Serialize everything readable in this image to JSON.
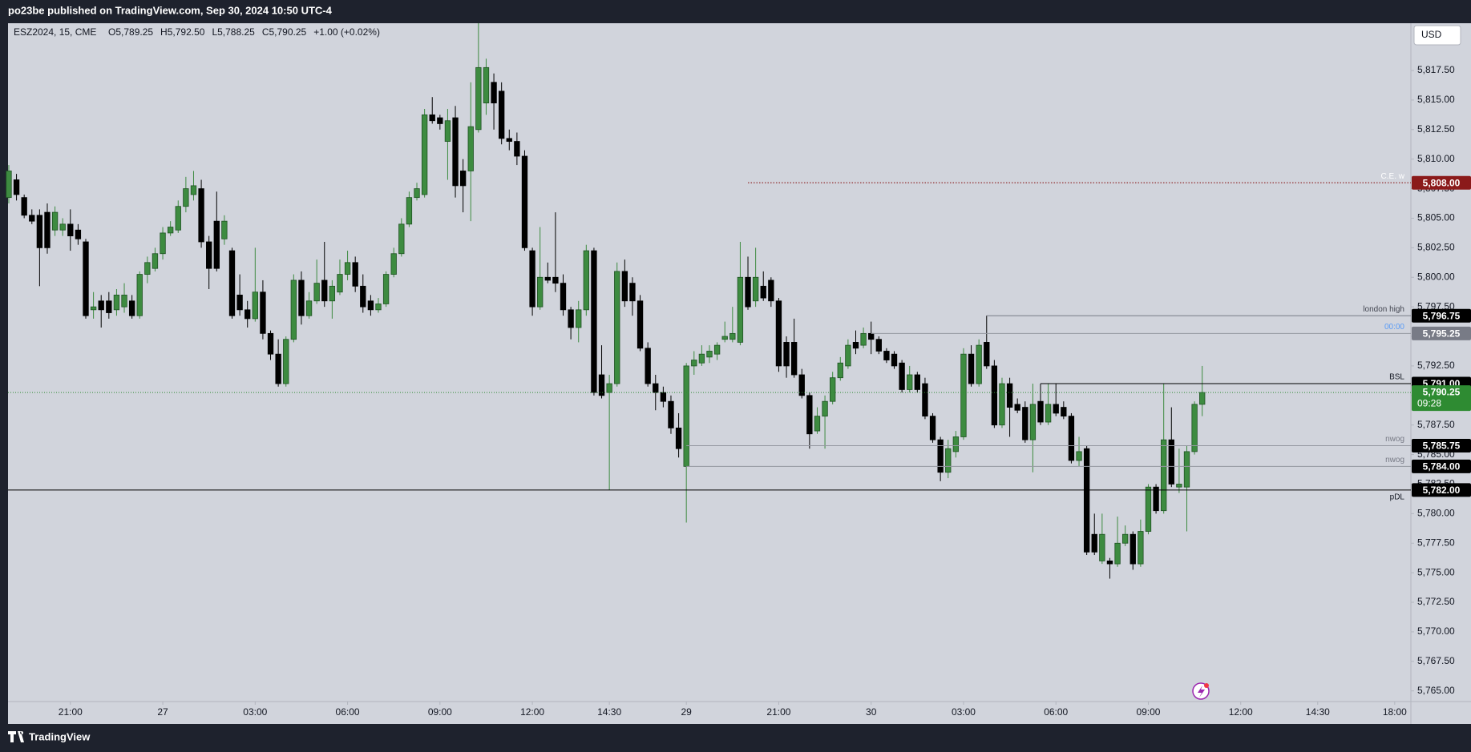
{
  "header": {
    "title": "po23be published on TradingView.com, Sep 30, 2024 10:50 UTC-4"
  },
  "chart_data": {
    "type": "candlestick",
    "symbol": "ESZ2024, 15, CME",
    "ohlc_legend": [
      "O5,789.25",
      "H5,792.50",
      "L5,788.25",
      "C5,790.25",
      "+1.00 (+0.02%)"
    ],
    "currency": "USD",
    "up_color": "#3d8b40",
    "up_border": "#1f5223",
    "down_color": "#000000",
    "open": [
      5806.75,
      5808.25,
      5806.75,
      5805.25,
      5805.25,
      5805.5,
      5804,
      5804,
      5804.5,
      5804,
      5803,
      5797.25,
      5798,
      5798,
      5797.25,
      5797.5,
      5798,
      5796.75,
      5800.25,
      5800.75,
      5802,
      5803.75,
      5804,
      5806,
      5807,
      5807.5,
      5803,
      5804.75,
      5803.25,
      5802.25,
      5798.5,
      5797.25,
      5796.5,
      5798.75,
      5795.25,
      5793.5,
      5791,
      5794.75,
      5799.75,
      5796.75,
      5798,
      5799.75,
      5798,
      5798.75,
      5800.25,
      5801.25,
      5799.25,
      5798,
      5797.25,
      5797.75,
      5800.25,
      5802,
      5804.5,
      5806.75,
      5807,
      5813.75,
      5813.5,
      5811.5,
      5813.5,
      5809,
      5809,
      5812.5,
      5814.75,
      5816.5,
      5815.75,
      5811.75,
      5811.5,
      5810.25,
      5802.25,
      5797.5,
      5800,
      5800,
      5799.5,
      5797.25,
      5795.75,
      5797.25,
      5802.25,
      5791.75,
      5790.25,
      5791,
      5800.5,
      5799.5,
      5798,
      5794,
      5791,
      5790.25,
      5789.5,
      5787.25,
      5784,
      5792.5,
      5792.75,
      5793.25,
      5793.5,
      5794.75,
      5794.75,
      5794.5,
      5800,
      5798,
      5799.25,
      5799.75,
      5798,
      5794.5,
      5794.5,
      5791.75,
      5790,
      5787,
      5788.25,
      5789.5,
      5791.5,
      5792.5,
      5794.5,
      5794.25,
      5795.25,
      5794.75,
      5793.75,
      5793.5,
      5792.75,
      5790.5,
      5791.75,
      5791,
      5788.25,
      5786.25,
      5783.5,
      5785.25,
      5786.5,
      5793.5,
      5791,
      5794.5,
      5792.5,
      5787.5,
      5791,
      5789.25,
      5789,
      5786.25,
      5789.5,
      5787.75,
      5789.25,
      5789,
      5788.25,
      5784.5,
      5785.5,
      5778.25,
      5776,
      5776,
      5775.75,
      5777.5,
      5778.25,
      5775.75,
      5778.5,
      5782.25,
      5780.25,
      5786.25,
      5782.25,
      5782.25,
      5785.25,
      5789.25
    ],
    "high": [
      5809.5,
      5808.75,
      5807,
      5805.75,
      5805.75,
      5806.25,
      5806,
      5805,
      5805.75,
      5804.5,
      5803.25,
      5798.75,
      5798.5,
      5798.75,
      5799,
      5799.5,
      5798.5,
      5800.5,
      5801.75,
      5802.5,
      5804.25,
      5804.75,
      5806.5,
      5808.5,
      5809,
      5808.25,
      5803.5,
      5807.25,
      5805.25,
      5802.5,
      5800.25,
      5798,
      5802.5,
      5799.75,
      5795.5,
      5794.75,
      5795,
      5800.25,
      5800.5,
      5798.75,
      5801.5,
      5803,
      5799.75,
      5801.5,
      5802.25,
      5801.75,
      5800.25,
      5798.5,
      5798.25,
      5800.5,
      5802.5,
      5805,
      5807.25,
      5808,
      5814.25,
      5815.25,
      5813.75,
      5814.25,
      5814.5,
      5810,
      5816.5,
      5821.5,
      5818.5,
      5817.25,
      5816.5,
      5812.5,
      5812.25,
      5810.75,
      5802.5,
      5804.25,
      5801.25,
      5805.5,
      5800.25,
      5797.5,
      5798,
      5802.75,
      5802.5,
      5794.25,
      5791.75,
      5801.25,
      5801.5,
      5800,
      5798.5,
      5794.5,
      5791.75,
      5790.75,
      5790,
      5788.5,
      5792.75,
      5793.75,
      5794.25,
      5794.25,
      5794.5,
      5796.25,
      5797.5,
      5803,
      5801.75,
      5802.5,
      5800.5,
      5800,
      5798.25,
      5795,
      5796.5,
      5792.25,
      5790.25,
      5789,
      5790,
      5792,
      5793.25,
      5794.75,
      5795.5,
      5795.75,
      5796.25,
      5795,
      5794,
      5793.75,
      5793,
      5792.5,
      5792,
      5791.5,
      5788.5,
      5786.5,
      5786.25,
      5787,
      5794,
      5794.25,
      5794.75,
      5796.75,
      5793,
      5791.5,
      5791.5,
      5789.75,
      5789.5,
      5791,
      5791,
      5791,
      5791,
      5789.5,
      5788.5,
      5786.5,
      5785.75,
      5780,
      5780,
      5776.25,
      5779.75,
      5779,
      5778.5,
      5779.5,
      5782.5,
      5782.5,
      5791,
      5789,
      5785.5,
      5785.75,
      5789.5,
      5792.5
    ],
    "low": [
      5806.25,
      5806.5,
      5805,
      5804.5,
      5799.25,
      5802,
      5803.5,
      5803.5,
      5802.25,
      5802.75,
      5796.5,
      5796.5,
      5795.75,
      5796.5,
      5796.75,
      5797,
      5796.5,
      5796.5,
      5799.5,
      5800.5,
      5801.5,
      5803.5,
      5803.75,
      5805.5,
      5806.5,
      5802.5,
      5799,
      5800.5,
      5802.75,
      5796.5,
      5796.75,
      5795.75,
      5796.25,
      5794.75,
      5793,
      5790.75,
      5790.75,
      5794.5,
      5796,
      5796.5,
      5797.75,
      5797.5,
      5796.5,
      5798.5,
      5799.75,
      5798.75,
      5797,
      5796.75,
      5797,
      5797.5,
      5800,
      5801.75,
      5804.25,
      5806.5,
      5806.75,
      5813,
      5812.5,
      5808.25,
      5806.75,
      5805.5,
      5804.75,
      5812.25,
      5813.75,
      5812.5,
      5811.25,
      5810.75,
      5809.5,
      5802.25,
      5796.75,
      5797.25,
      5799.5,
      5798.75,
      5796.75,
      5794.75,
      5794.5,
      5796.75,
      5790,
      5789.75,
      5782,
      5790.75,
      5797.5,
      5796.75,
      5793.75,
      5790.75,
      5788.75,
      5789,
      5786.75,
      5784.75,
      5779.25,
      5791.75,
      5792.5,
      5792.75,
      5793,
      5794.5,
      5794.5,
      5794.25,
      5797.25,
      5797.5,
      5798,
      5797.5,
      5792,
      5791.5,
      5791.5,
      5789.75,
      5785.5,
      5786.75,
      5785.5,
      5789.25,
      5791.25,
      5792.25,
      5793.5,
      5794,
      5793.5,
      5793.5,
      5792.75,
      5792.25,
      5790.25,
      5790.25,
      5790.25,
      5788,
      5786,
      5782.75,
      5783,
      5784.75,
      5786.25,
      5790.75,
      5790.75,
      5792.25,
      5787.25,
      5787.25,
      5786.5,
      5788.5,
      5786,
      5783.5,
      5787.5,
      5787.5,
      5788.25,
      5788,
      5784.25,
      5784,
      5776.5,
      5776.5,
      5775.75,
      5774.5,
      5775.5,
      5777.25,
      5775.25,
      5775.5,
      5778.25,
      5780,
      5780,
      5782.25,
      5781.75,
      5778.5,
      5785,
      5788.25
    ],
    "close": [
      5809,
      5807,
      5805.25,
      5804.75,
      5802.5,
      5802.5,
      5805.5,
      5804.5,
      5803.5,
      5803.25,
      5796.75,
      5797.5,
      5797.25,
      5797,
      5798.5,
      5798.5,
      5796.75,
      5800.25,
      5801.25,
      5802,
      5803.75,
      5804.25,
      5806,
      5807.5,
      5807.75,
      5803,
      5800.75,
      5800.75,
      5804.75,
      5796.75,
      5797.25,
      5796.5,
      5798.75,
      5795.25,
      5793.5,
      5791,
      5794.75,
      5799.75,
      5796.75,
      5798,
      5799.5,
      5798,
      5799.25,
      5800.25,
      5801.25,
      5799.25,
      5797.5,
      5797.25,
      5797.75,
      5800.25,
      5802,
      5804.5,
      5806.75,
      5807.5,
      5813.75,
      5813.25,
      5813,
      5813.25,
      5807.75,
      5807.75,
      5812.75,
      5817.75,
      5817.75,
      5814.75,
      5811.75,
      5811.5,
      5810.25,
      5802.5,
      5797.5,
      5800,
      5799.75,
      5799.5,
      5797.25,
      5795.75,
      5797.25,
      5802.25,
      5790.25,
      5790,
      5791,
      5800.5,
      5798,
      5798,
      5794,
      5791,
      5790.25,
      5789.5,
      5787.25,
      5785.5,
      5792.5,
      5793,
      5793.5,
      5793.75,
      5794.25,
      5795,
      5795.25,
      5800,
      5797.5,
      5800,
      5798.25,
      5798,
      5792.5,
      5792.5,
      5791.75,
      5790,
      5786.75,
      5788.25,
      5789.5,
      5791.5,
      5792.75,
      5794.25,
      5794,
      5795.25,
      5794.75,
      5793.75,
      5793,
      5792.5,
      5790.5,
      5791.75,
      5790.5,
      5788.25,
      5786.25,
      5783.5,
      5785.5,
      5786.5,
      5793.5,
      5791,
      5794.25,
      5792.5,
      5787.5,
      5791,
      5789,
      5788.75,
      5786.25,
      5789.25,
      5787.75,
      5789.25,
      5788.5,
      5788.25,
      5784.5,
      5785.25,
      5776.75,
      5776.75,
      5778.25,
      5775.75,
      5777.5,
      5778.25,
      5775.75,
      5778.5,
      5782.25,
      5780.25,
      5786.25,
      5782.5,
      5782.5,
      5785.25,
      5789.25,
      5790.25
    ],
    "xlim": [
      -0.1,
      182.1
    ],
    "xticks": [
      {
        "value": 8,
        "label": "21:00"
      },
      {
        "value": 20,
        "label": "27"
      },
      {
        "value": 32,
        "label": "03:00"
      },
      {
        "value": 44,
        "label": "06:00"
      },
      {
        "value": 56,
        "label": "09:00"
      },
      {
        "value": 68,
        "label": "12:00"
      },
      {
        "value": 78,
        "label": "14:30"
      },
      {
        "value": 88,
        "label": "29"
      },
      {
        "value": 100,
        "label": "21:00"
      },
      {
        "value": 112,
        "label": "30"
      },
      {
        "value": 124,
        "label": "03:00"
      },
      {
        "value": 136,
        "label": "06:00"
      },
      {
        "value": 148,
        "label": "09:00"
      },
      {
        "value": 160,
        "label": "12:00"
      },
      {
        "value": 170,
        "label": "14:30"
      },
      {
        "value": 180,
        "label": "18:00"
      }
    ],
    "ylim": [
      5764.1,
      5821.5
    ],
    "yticks": [
      {
        "value": 5765,
        "label": "5,765.00"
      },
      {
        "value": 5767.5,
        "label": "5,767.50"
      },
      {
        "value": 5770,
        "label": "5,770.00"
      },
      {
        "value": 5772.5,
        "label": "5,772.50"
      },
      {
        "value": 5775,
        "label": "5,775.00"
      },
      {
        "value": 5777.5,
        "label": "5,777.50"
      },
      {
        "value": 5780,
        "label": "5,780.00"
      },
      {
        "value": 5782.5,
        "label": "5,782.50"
      },
      {
        "value": 5785,
        "label": "5,785.00"
      },
      {
        "value": 5787.5,
        "label": "5,787.50"
      },
      {
        "value": 5790,
        "label": "5,790.00"
      },
      {
        "value": 5792.5,
        "label": "5,792.50"
      },
      {
        "value": 5795,
        "label": "5,795.00"
      },
      {
        "value": 5797.5,
        "label": "5,797.50"
      },
      {
        "value": 5800,
        "label": "5,800.00"
      },
      {
        "value": 5802.5,
        "label": "5,802.50"
      },
      {
        "value": 5805,
        "label": "5,805.00"
      },
      {
        "value": 5807.5,
        "label": "5,807.50"
      },
      {
        "value": 5810,
        "label": "5,810.00"
      },
      {
        "value": 5812.5,
        "label": "5,812.50"
      },
      {
        "value": 5815,
        "label": "5,815.00"
      },
      {
        "value": 5817.5,
        "label": "5,817.50"
      }
    ],
    "last_price": {
      "value": 5790.25,
      "label": "5,790.25",
      "countdown": "09:28",
      "color": "#2e8b32"
    },
    "levels": [
      {
        "name": "C.E. w",
        "value": 5808,
        "label": "5,808.00",
        "from": 96,
        "color": "#8b1a1a",
        "tag_color": "#8b1a1a",
        "text_color": "#ffffff",
        "style": "dotted"
      },
      {
        "name": "london high",
        "value": 5796.75,
        "label": "5,796.75",
        "from": 127,
        "color": "#787b86",
        "tag_color": "#000000",
        "text_color": "#434651",
        "style": "solid"
      },
      {
        "name": "00:00",
        "value": 5795.25,
        "label": "5,795.25",
        "from": 112,
        "color": "#9598a1",
        "tag_color": "#787b86",
        "text_color": "#5b9cf6",
        "style": "solid"
      },
      {
        "name": "BSL",
        "value": 5791,
        "label": "5,791.00",
        "from": 134,
        "color": "#000000",
        "tag_color": "#000000",
        "text_color": "#131722",
        "style": "solid"
      },
      {
        "name": "nwog",
        "value": 5785.75,
        "label": "5,785.75",
        "from": 88,
        "color": "#9598a1",
        "tag_color": "#000000",
        "text_color": "#787b86",
        "style": "solid"
      },
      {
        "name": "nwog",
        "value": 5784,
        "label": "5,784.00",
        "from": 88,
        "color": "#9598a1",
        "tag_color": "#000000",
        "text_color": "#787b86",
        "style": "solid"
      },
      {
        "name": "pDL",
        "value": 5782,
        "label": "5,782.00",
        "color": "#000000",
        "tag_color": "#000000",
        "text_color": "#131722",
        "style": "solid",
        "text_pos": "below"
      }
    ]
  },
  "footer": {
    "brand": "TradingView"
  }
}
